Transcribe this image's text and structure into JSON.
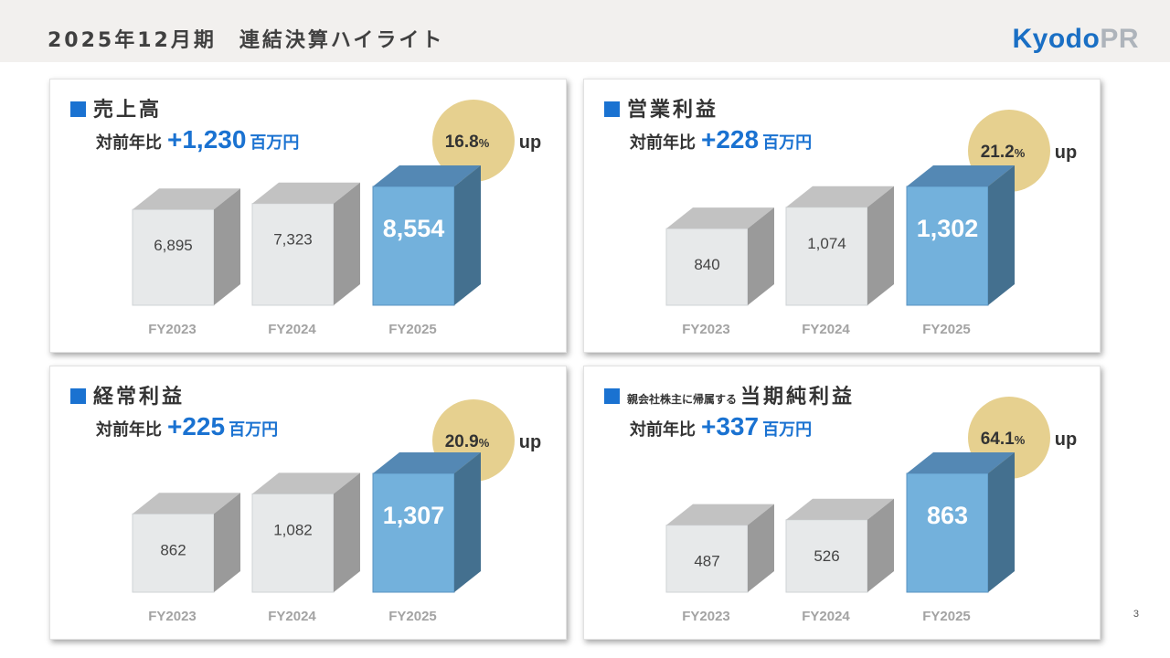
{
  "header": {
    "title": "2025年12月期　連結決算ハイライト"
  },
  "logo": {
    "part1": "Kyodo",
    "part2": "PR"
  },
  "page_number": "3",
  "colors": {
    "accent": "#1a72d1",
    "blue_front": "#73b1dc",
    "blue_top": "#5488b4",
    "blue_side": "#44708f",
    "gray_front": "#e7e9ea",
    "gray_top": "#c2c2c2",
    "gray_side": "#9a9a9a",
    "growth_circle": "#e6d08f"
  },
  "panels": [
    {
      "title": "売上高",
      "title_prefix": "",
      "yoy_label": "対前年比",
      "yoy_value": "+1,230",
      "yoy_unit": "百万円",
      "growth_value": "16.8",
      "growth_pct": "%",
      "growth_up": "up"
    },
    {
      "title": "営業利益",
      "title_prefix": "",
      "yoy_label": "対前年比",
      "yoy_value": "+228",
      "yoy_unit": "百万円",
      "growth_value": "21.2",
      "growth_pct": "%",
      "growth_up": "up"
    },
    {
      "title": "経常利益",
      "title_prefix": "",
      "yoy_label": "対前年比",
      "yoy_value": "+225",
      "yoy_unit": "百万円",
      "growth_value": "20.9",
      "growth_pct": "%",
      "growth_up": "up"
    },
    {
      "title": "当期純利益",
      "title_prefix": "親会社株主に帰属する",
      "yoy_label": "対前年比",
      "yoy_value": "+337",
      "yoy_unit": "百万円",
      "growth_value": "64.1",
      "growth_pct": "%",
      "growth_up": "up"
    }
  ],
  "chart_data": [
    {
      "type": "bar",
      "title": "売上高",
      "categories": [
        "FY2023",
        "FY2024",
        "FY2025"
      ],
      "values": [
        6895,
        7323,
        8554
      ],
      "labels": [
        "6,895",
        "7,323",
        "8,554"
      ]
    },
    {
      "type": "bar",
      "title": "営業利益",
      "categories": [
        "FY2023",
        "FY2024",
        "FY2025"
      ],
      "values": [
        840,
        1074,
        1302
      ],
      "labels": [
        "840",
        "1,074",
        "1,302"
      ]
    },
    {
      "type": "bar",
      "title": "経常利益",
      "categories": [
        "FY2023",
        "FY2024",
        "FY2025"
      ],
      "values": [
        862,
        1082,
        1307
      ],
      "labels": [
        "862",
        "1,082",
        "1,307"
      ]
    },
    {
      "type": "bar",
      "title": "当期純利益",
      "categories": [
        "FY2023",
        "FY2024",
        "FY2025"
      ],
      "values": [
        487,
        526,
        863
      ],
      "labels": [
        "487",
        "526",
        "863"
      ]
    }
  ]
}
